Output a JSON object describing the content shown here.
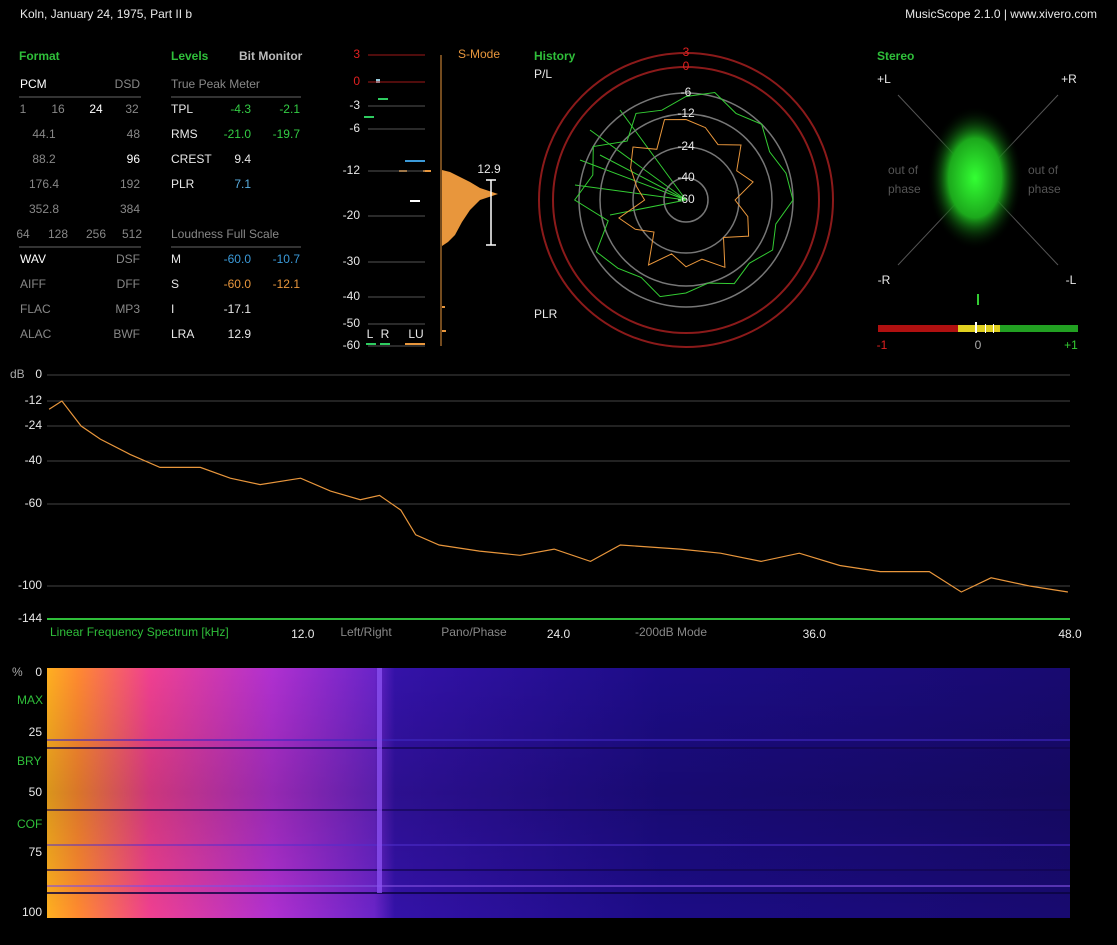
{
  "header": {
    "title": "Koln, January 24, 1975, Part II b",
    "app": "MusicScope 2.1.0 | www.xivero.com"
  },
  "format": {
    "title": "Format",
    "rows": [
      [
        {
          "text": "PCM",
          "on": true
        },
        {
          "text": "DSD",
          "on": false
        }
      ],
      [
        {
          "text": "1",
          "on": false
        },
        {
          "text": "16",
          "on": false
        },
        {
          "text": "24",
          "on": true
        },
        {
          "text": "32",
          "on": false
        }
      ],
      [
        {
          "text": "44.1",
          "on": false
        },
        {
          "text": "48",
          "on": false
        }
      ],
      [
        {
          "text": "88.2",
          "on": false
        },
        {
          "text": "96",
          "on": true
        }
      ],
      [
        {
          "text": "176.4",
          "on": false
        },
        {
          "text": "192",
          "on": false
        }
      ],
      [
        {
          "text": "352.8",
          "on": false
        },
        {
          "text": "384",
          "on": false
        }
      ],
      [
        {
          "text": "64",
          "on": false
        },
        {
          "text": "128",
          "on": false
        },
        {
          "text": "256",
          "on": false
        },
        {
          "text": "512",
          "on": false
        }
      ],
      [
        {
          "text": "WAV",
          "on": true
        },
        {
          "text": "DSF",
          "on": false
        }
      ],
      [
        {
          "text": "AIFF",
          "on": false
        },
        {
          "text": "DFF",
          "on": false
        }
      ],
      [
        {
          "text": "FLAC",
          "on": false
        },
        {
          "text": "MP3",
          "on": false
        }
      ],
      [
        {
          "text": "ALAC",
          "on": false
        },
        {
          "text": "BWF",
          "on": false
        }
      ]
    ]
  },
  "levels": {
    "title": "Levels",
    "bit_monitor": "Bit Monitor",
    "true_peak_header": "True Peak Meter",
    "peak_rows": [
      {
        "label": "TPL",
        "values": [
          "-4.3",
          "-2.1"
        ],
        "colors": [
          "#33cc44",
          "#33cc44"
        ]
      },
      {
        "label": "RMS",
        "values": [
          "-21.0",
          "-19.7"
        ],
        "colors": [
          "#33cc44",
          "#33cc44"
        ]
      },
      {
        "label": "CREST",
        "values": [
          "9.4"
        ],
        "colors": [
          "#e8e8e8"
        ]
      },
      {
        "label": "PLR",
        "values": [
          "7.1"
        ],
        "colors": [
          "#5aaee0"
        ]
      }
    ],
    "loudness_header": "Loudness Full Scale",
    "loudness_rows": [
      {
        "label": "M",
        "values": [
          "-60.0",
          "-10.7"
        ],
        "colors": [
          "#3b9ad9",
          "#3b9ad9"
        ]
      },
      {
        "label": "S",
        "values": [
          "-60.0",
          "-12.1"
        ],
        "colors": [
          "#e8963c",
          "#e8963c"
        ]
      },
      {
        "label": "I",
        "values": [
          "-17.1"
        ],
        "colors": [
          "#e8e8e8"
        ]
      },
      {
        "label": "LRA",
        "values": [
          "12.9"
        ],
        "colors": [
          "#e8e8e8"
        ]
      }
    ]
  },
  "meter": {
    "mode": "S-Mode",
    "scale": [
      3,
      0,
      -3,
      -6,
      -12,
      -20,
      -30,
      -40,
      -50,
      -60
    ],
    "range_value": 12.9,
    "channels": [
      "L",
      "R",
      "LU"
    ]
  },
  "history": {
    "title": "History",
    "pl_label": "P/L",
    "plr_label": "PLR",
    "rings": [
      3,
      0,
      -6,
      -12,
      -24,
      -40,
      -60
    ],
    "pl": [
      -7,
      -5,
      -8,
      -6,
      -9,
      -7,
      -6,
      -10,
      -8,
      -11,
      -9,
      -12,
      -10,
      -8,
      -11,
      -9,
      -7,
      -14,
      -5,
      -9,
      -6,
      -13,
      -8,
      -10
    ],
    "plr": [
      -14,
      -16,
      -20,
      -15,
      -22,
      -18,
      -26,
      -20,
      -17,
      -24,
      -15,
      -21,
      -19,
      -23,
      -16,
      -28,
      -22,
      -18,
      -30,
      -25,
      -20,
      -16,
      -22,
      -13
    ],
    "pl_color": "#33cc33",
    "plr_color": "#e8963c"
  },
  "stereo": {
    "title": "Stereo",
    "corners": [
      "+L",
      "+R",
      "-R",
      "-L"
    ],
    "left_note": [
      "out of",
      "phase"
    ],
    "right_note": [
      "out of",
      "phase"
    ],
    "scale": [
      "-1",
      "0",
      "+1"
    ]
  },
  "spectrum": {
    "y_label": "dB",
    "yticks": [
      0,
      -12,
      -24,
      -40,
      -60,
      -100,
      -144
    ],
    "ylim": [
      -144,
      0
    ],
    "xlim": [
      0,
      48
    ],
    "xticks": [
      {
        "value": 12,
        "label": "12.0"
      },
      {
        "value": 24,
        "label": "24.0"
      },
      {
        "value": 36,
        "label": "36.0"
      },
      {
        "value": 48,
        "label": "48.0"
      }
    ],
    "x_label": "Linear Frequency Spectrum [kHz]",
    "buttons": [
      "Left/Right",
      "Pano/Phase",
      "-200dB Mode"
    ],
    "color": "#e8963c",
    "x": [
      0.1,
      0.7,
      1.6,
      2.5,
      3.9,
      5.3,
      7.2,
      8.6,
      10,
      11.9,
      13.3,
      14.7,
      15.6,
      16.6,
      17.3,
      18.4,
      20.3,
      22.2,
      23.8,
      25.5,
      26.9,
      29.7,
      31.6,
      33.5,
      35.3,
      37.2,
      39.1,
      41.4,
      42.9,
      44.3,
      46.1,
      47.9
    ],
    "values": [
      -16,
      -12,
      -24,
      -30,
      -37,
      -43,
      -43,
      -48,
      -51,
      -48,
      -54,
      -58,
      -56,
      -63,
      -75,
      -80,
      -83,
      -85,
      -82,
      -88,
      -80,
      -82,
      -84,
      -88,
      -84,
      -90,
      -93,
      -93,
      -108,
      -96,
      -100,
      -108
    ]
  },
  "spectrogram": {
    "y_label": "%",
    "yticks": [
      0,
      25,
      50,
      75,
      100
    ],
    "markers": [
      "MAX",
      "BRY",
      "COF"
    ]
  }
}
